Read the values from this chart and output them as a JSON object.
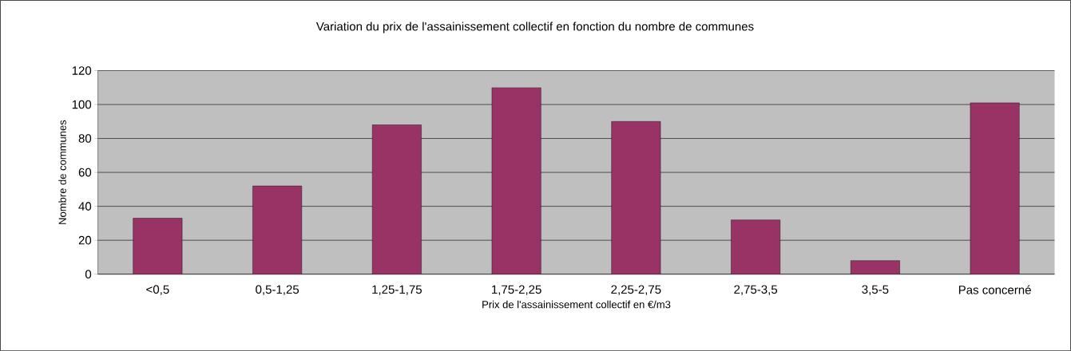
{
  "chart_data": {
    "type": "bar",
    "title": "Variation du prix de l'assainissement collectif en fonction du nombre de communes",
    "xlabel": "Prix de l'assainissement collectif en €/m3",
    "ylabel": "Nombre de communes",
    "categories": [
      "<0,5",
      "0,5-1,25",
      "1,25-1,75",
      "1,75-2,25",
      "2,25-2,75",
      "2,75-3,5",
      "3,5-5",
      "Pas concerné"
    ],
    "values": [
      33,
      52,
      88,
      110,
      90,
      32,
      8,
      101
    ],
    "color": "#993366",
    "ylim": [
      0,
      120
    ],
    "yticks": [
      0,
      20,
      40,
      60,
      80,
      100,
      120
    ],
    "grid": "y"
  }
}
